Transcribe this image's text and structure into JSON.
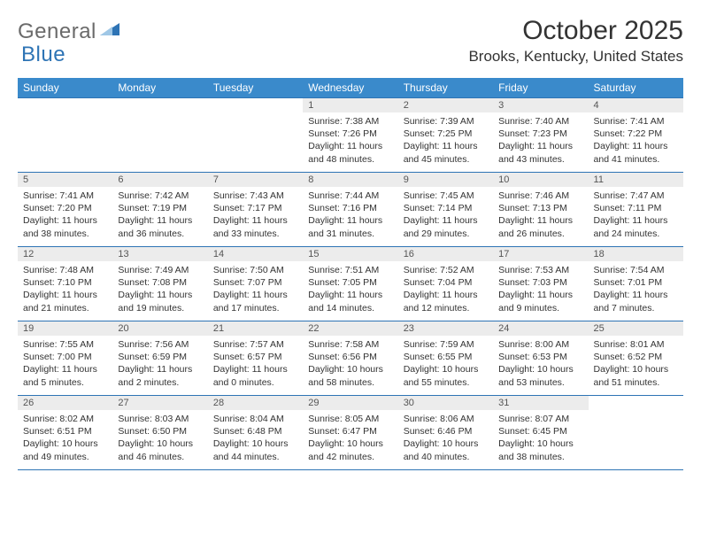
{
  "logo": {
    "general": "General",
    "blue": "Blue"
  },
  "header": {
    "month": "October 2025",
    "location": "Brooks, Kentucky, United States"
  },
  "colors": {
    "headerBg": "#3a8acb",
    "accent": "#2e74b5",
    "dayNumBg": "#ececec"
  },
  "weekdays": [
    "Sunday",
    "Monday",
    "Tuesday",
    "Wednesday",
    "Thursday",
    "Friday",
    "Saturday"
  ],
  "startWeekday": 3,
  "days": [
    {
      "n": 1,
      "sunrise": "7:38 AM",
      "sunset": "7:26 PM",
      "dl_h": 11,
      "dl_m": 48
    },
    {
      "n": 2,
      "sunrise": "7:39 AM",
      "sunset": "7:25 PM",
      "dl_h": 11,
      "dl_m": 45
    },
    {
      "n": 3,
      "sunrise": "7:40 AM",
      "sunset": "7:23 PM",
      "dl_h": 11,
      "dl_m": 43
    },
    {
      "n": 4,
      "sunrise": "7:41 AM",
      "sunset": "7:22 PM",
      "dl_h": 11,
      "dl_m": 41
    },
    {
      "n": 5,
      "sunrise": "7:41 AM",
      "sunset": "7:20 PM",
      "dl_h": 11,
      "dl_m": 38
    },
    {
      "n": 6,
      "sunrise": "7:42 AM",
      "sunset": "7:19 PM",
      "dl_h": 11,
      "dl_m": 36
    },
    {
      "n": 7,
      "sunrise": "7:43 AM",
      "sunset": "7:17 PM",
      "dl_h": 11,
      "dl_m": 33
    },
    {
      "n": 8,
      "sunrise": "7:44 AM",
      "sunset": "7:16 PM",
      "dl_h": 11,
      "dl_m": 31
    },
    {
      "n": 9,
      "sunrise": "7:45 AM",
      "sunset": "7:14 PM",
      "dl_h": 11,
      "dl_m": 29
    },
    {
      "n": 10,
      "sunrise": "7:46 AM",
      "sunset": "7:13 PM",
      "dl_h": 11,
      "dl_m": 26
    },
    {
      "n": 11,
      "sunrise": "7:47 AM",
      "sunset": "7:11 PM",
      "dl_h": 11,
      "dl_m": 24
    },
    {
      "n": 12,
      "sunrise": "7:48 AM",
      "sunset": "7:10 PM",
      "dl_h": 11,
      "dl_m": 21
    },
    {
      "n": 13,
      "sunrise": "7:49 AM",
      "sunset": "7:08 PM",
      "dl_h": 11,
      "dl_m": 19
    },
    {
      "n": 14,
      "sunrise": "7:50 AM",
      "sunset": "7:07 PM",
      "dl_h": 11,
      "dl_m": 17
    },
    {
      "n": 15,
      "sunrise": "7:51 AM",
      "sunset": "7:05 PM",
      "dl_h": 11,
      "dl_m": 14
    },
    {
      "n": 16,
      "sunrise": "7:52 AM",
      "sunset": "7:04 PM",
      "dl_h": 11,
      "dl_m": 12
    },
    {
      "n": 17,
      "sunrise": "7:53 AM",
      "sunset": "7:03 PM",
      "dl_h": 11,
      "dl_m": 9
    },
    {
      "n": 18,
      "sunrise": "7:54 AM",
      "sunset": "7:01 PM",
      "dl_h": 11,
      "dl_m": 7
    },
    {
      "n": 19,
      "sunrise": "7:55 AM",
      "sunset": "7:00 PM",
      "dl_h": 11,
      "dl_m": 5
    },
    {
      "n": 20,
      "sunrise": "7:56 AM",
      "sunset": "6:59 PM",
      "dl_h": 11,
      "dl_m": 2
    },
    {
      "n": 21,
      "sunrise": "7:57 AM",
      "sunset": "6:57 PM",
      "dl_h": 11,
      "dl_m": 0
    },
    {
      "n": 22,
      "sunrise": "7:58 AM",
      "sunset": "6:56 PM",
      "dl_h": 10,
      "dl_m": 58
    },
    {
      "n": 23,
      "sunrise": "7:59 AM",
      "sunset": "6:55 PM",
      "dl_h": 10,
      "dl_m": 55
    },
    {
      "n": 24,
      "sunrise": "8:00 AM",
      "sunset": "6:53 PM",
      "dl_h": 10,
      "dl_m": 53
    },
    {
      "n": 25,
      "sunrise": "8:01 AM",
      "sunset": "6:52 PM",
      "dl_h": 10,
      "dl_m": 51
    },
    {
      "n": 26,
      "sunrise": "8:02 AM",
      "sunset": "6:51 PM",
      "dl_h": 10,
      "dl_m": 49
    },
    {
      "n": 27,
      "sunrise": "8:03 AM",
      "sunset": "6:50 PM",
      "dl_h": 10,
      "dl_m": 46
    },
    {
      "n": 28,
      "sunrise": "8:04 AM",
      "sunset": "6:48 PM",
      "dl_h": 10,
      "dl_m": 44
    },
    {
      "n": 29,
      "sunrise": "8:05 AM",
      "sunset": "6:47 PM",
      "dl_h": 10,
      "dl_m": 42
    },
    {
      "n": 30,
      "sunrise": "8:06 AM",
      "sunset": "6:46 PM",
      "dl_h": 10,
      "dl_m": 40
    },
    {
      "n": 31,
      "sunrise": "8:07 AM",
      "sunset": "6:45 PM",
      "dl_h": 10,
      "dl_m": 38
    }
  ]
}
